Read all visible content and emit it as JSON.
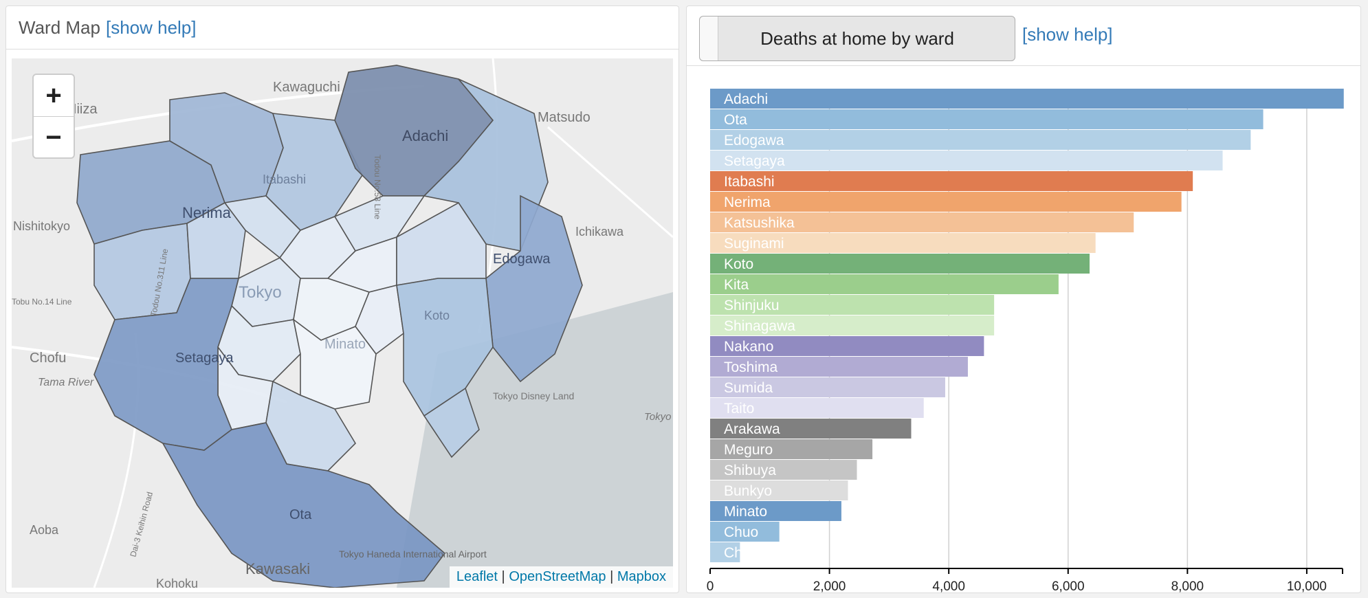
{
  "left": {
    "title": "Ward Map",
    "help_label": "[show help]",
    "zoom_in": "+",
    "zoom_out": "−",
    "attribution": {
      "leaflet": "Leaflet",
      "sep": "|",
      "osm": "OpenStreetMap",
      "mapbox": "Mapbox"
    },
    "places": [
      "Kawaguchi",
      "Niiza",
      "Matsudo",
      "Adachi",
      "Itabashi",
      "Nerima",
      "Nishitokyo",
      "Ichikawa",
      "Edogawa",
      "Tokyo",
      "Koto",
      "Minato",
      "Chofu",
      "Setagaya",
      "Tama River",
      "Tokyo Disney Land",
      "Tokyo",
      "Ota",
      "Aoba",
      "Kawasaki",
      "Tokyo Haneda International Airport",
      "Kohoku",
      "Tobu No.14 Line",
      "Todou No.58 Line",
      "Todou No.311 Line",
      "Dai-3 Keihin Road"
    ]
  },
  "right": {
    "select_label": "Deaths at home by ward",
    "help_label": "[show help]"
  },
  "chart_data": {
    "type": "bar",
    "orientation": "horizontal",
    "categories": [
      "Adachi",
      "Ota",
      "Edogawa",
      "Setagaya",
      "Itabashi",
      "Nerima",
      "Katsushika",
      "Suginami",
      "Koto",
      "Kita",
      "Shinjuku",
      "Shinagawa",
      "Nakano",
      "Toshima",
      "Sumida",
      "Taito",
      "Arakawa",
      "Meguro",
      "Shibuya",
      "Bunkyo",
      "Minato",
      "Chuo",
      "Ch"
    ],
    "values": [
      10620,
      9270,
      9060,
      8590,
      8090,
      7900,
      7100,
      6460,
      6360,
      5840,
      4760,
      4760,
      4590,
      4320,
      3940,
      3580,
      3370,
      2720,
      2460,
      2310,
      2200,
      1160,
      500
    ],
    "colors": [
      "#6c9ac8",
      "#92bcdc",
      "#b2d0e6",
      "#d2e2f0",
      "#e07c50",
      "#f0a46c",
      "#f4c196",
      "#f7dcbe",
      "#74b178",
      "#9bce8c",
      "#bde2ae",
      "#d6edca",
      "#918bc1",
      "#b1abd3",
      "#cac8e2",
      "#e0dff0",
      "#808080",
      "#a6a6a6",
      "#c5c5c5",
      "#dddddd",
      "#6c9ac8",
      "#92bcdc",
      "#b2d0e6"
    ],
    "xlim": [
      0,
      10600
    ],
    "x_ticks": [
      "0",
      "2,000",
      "4,000",
      "6,000",
      "8,000",
      "10,000"
    ],
    "grid": true
  }
}
